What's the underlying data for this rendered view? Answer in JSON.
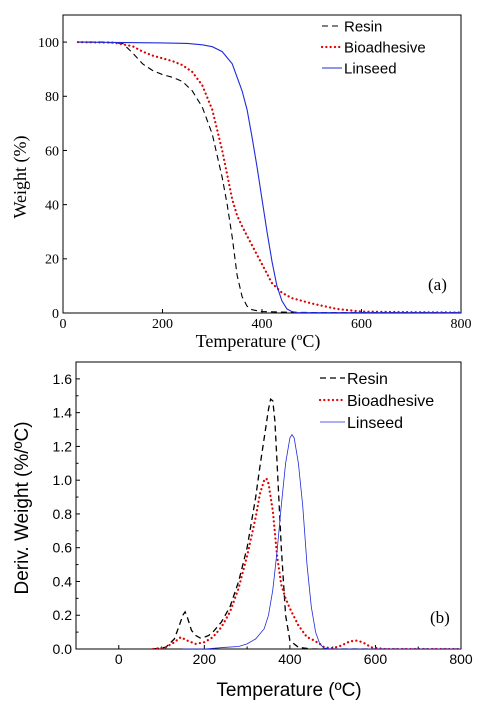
{
  "chart_data": [
    {
      "type": "line",
      "panel_label": "(a)",
      "xlabel": "Temperature (ºC)",
      "ylabel": "Weight (%)",
      "xlim": [
        0,
        800
      ],
      "ylim": [
        0,
        110
      ],
      "xticks": [
        0,
        200,
        400,
        600,
        800
      ],
      "yticks": [
        0,
        20,
        40,
        60,
        80,
        100
      ],
      "legend_position": "top-right",
      "series": [
        {
          "name": "Resin",
          "color": "#000000",
          "style": "dashed",
          "x": [
            30,
            80,
            120,
            140,
            160,
            180,
            200,
            220,
            240,
            260,
            280,
            300,
            320,
            330,
            340,
            350,
            360,
            370,
            380,
            400,
            450,
            500,
            600,
            700,
            800
          ],
          "y": [
            100,
            100,
            99.5,
            96,
            92,
            89.5,
            88,
            87,
            85.5,
            82,
            76,
            66,
            50,
            40,
            28,
            14,
            6,
            2.5,
            1.2,
            0.5,
            0.3,
            0.2,
            0.2,
            0.2,
            0.2
          ]
        },
        {
          "name": "Bioadhesive",
          "color": "#e00000",
          "style": "dotted",
          "x": [
            30,
            100,
            140,
            160,
            180,
            200,
            220,
            240,
            260,
            280,
            300,
            320,
            340,
            350,
            360,
            380,
            400,
            420,
            440,
            460,
            500,
            550,
            600,
            700,
            800
          ],
          "y": [
            100,
            99.8,
            98.5,
            96.5,
            95,
            94,
            93,
            91.5,
            89,
            84,
            75,
            60,
            42,
            36,
            32,
            25,
            18,
            11,
            7.5,
            5.5,
            3.5,
            1.5,
            0.5,
            0.3,
            0.2
          ],
          "line_width": 2.2
        },
        {
          "name": "Linseed",
          "color": "#1f2bd9",
          "style": "solid",
          "x": [
            30,
            100,
            200,
            250,
            280,
            300,
            320,
            340,
            360,
            370,
            380,
            390,
            400,
            410,
            420,
            430,
            440,
            450,
            460,
            470,
            500,
            600,
            700,
            800
          ],
          "y": [
            100,
            99.9,
            99.7,
            99.5,
            99.0,
            98.3,
            96.5,
            92,
            82,
            75,
            65,
            54,
            42,
            30,
            19,
            10,
            4.5,
            1.5,
            0.5,
            0.2,
            0.1,
            0.1,
            0.1,
            0.1
          ]
        }
      ]
    },
    {
      "type": "line",
      "panel_label": "(b)",
      "xlabel": "Temperature (ºC)",
      "ylabel": "Deriv. Weight (%/ºC)",
      "xlim": [
        -100,
        800
      ],
      "ylim": [
        0,
        1.7
      ],
      "xticks": [
        0,
        200,
        400,
        600,
        800
      ],
      "yticks": [
        0.0,
        0.2,
        0.4,
        0.6,
        0.8,
        1.0,
        1.2,
        1.4,
        1.6
      ],
      "legend_position": "top-right",
      "series": [
        {
          "name": "Resin",
          "color": "#000000",
          "style": "dashed",
          "x": [
            80,
            110,
            130,
            140,
            150,
            155,
            160,
            170,
            180,
            190,
            200,
            210,
            220,
            240,
            260,
            280,
            300,
            320,
            330,
            340,
            350,
            355,
            360,
            365,
            370,
            380,
            390,
            400,
            420,
            450,
            500,
            600,
            700,
            800
          ],
          "y": [
            0.0,
            0.01,
            0.06,
            0.13,
            0.2,
            0.22,
            0.19,
            0.11,
            0.08,
            0.065,
            0.07,
            0.08,
            0.1,
            0.16,
            0.25,
            0.4,
            0.6,
            0.9,
            1.08,
            1.25,
            1.42,
            1.48,
            1.47,
            1.35,
            1.1,
            0.6,
            0.2,
            0.05,
            0.01,
            0.0,
            0.0,
            0.0,
            0.0,
            0.0
          ],
          "line_width": 1.3
        },
        {
          "name": "Bioadhesive",
          "color": "#e00000",
          "style": "dotted",
          "x": [
            80,
            110,
            130,
            145,
            160,
            180,
            200,
            220,
            240,
            260,
            280,
            300,
            320,
            330,
            340,
            345,
            350,
            360,
            370,
            380,
            390,
            400,
            420,
            440,
            450,
            460,
            470,
            480,
            500,
            520,
            540,
            555,
            570,
            590,
            620,
            700,
            800
          ],
          "y": [
            0.0,
            0.01,
            0.04,
            0.07,
            0.05,
            0.03,
            0.04,
            0.07,
            0.13,
            0.22,
            0.36,
            0.55,
            0.78,
            0.92,
            1.0,
            1.01,
            0.98,
            0.82,
            0.55,
            0.38,
            0.3,
            0.24,
            0.14,
            0.07,
            0.06,
            0.045,
            0.03,
            0.01,
            0.005,
            0.02,
            0.045,
            0.05,
            0.04,
            0.01,
            0.0,
            0.0,
            0.0
          ],
          "line_width": 2.2
        },
        {
          "name": "Linseed",
          "color": "#1f2bd9",
          "style": "solid",
          "x": [
            150,
            200,
            250,
            280,
            300,
            320,
            340,
            350,
            360,
            370,
            380,
            390,
            400,
            405,
            410,
            420,
            430,
            440,
            450,
            460,
            470,
            480,
            500,
            600,
            700,
            800
          ],
          "y": [
            0.0,
            0.0,
            0.01,
            0.015,
            0.03,
            0.06,
            0.12,
            0.2,
            0.35,
            0.58,
            0.85,
            1.1,
            1.25,
            1.27,
            1.25,
            1.1,
            0.85,
            0.5,
            0.25,
            0.1,
            0.03,
            0.005,
            0.0,
            0.0,
            0.0,
            0.0
          ],
          "line_width": 0.8
        }
      ]
    }
  ]
}
